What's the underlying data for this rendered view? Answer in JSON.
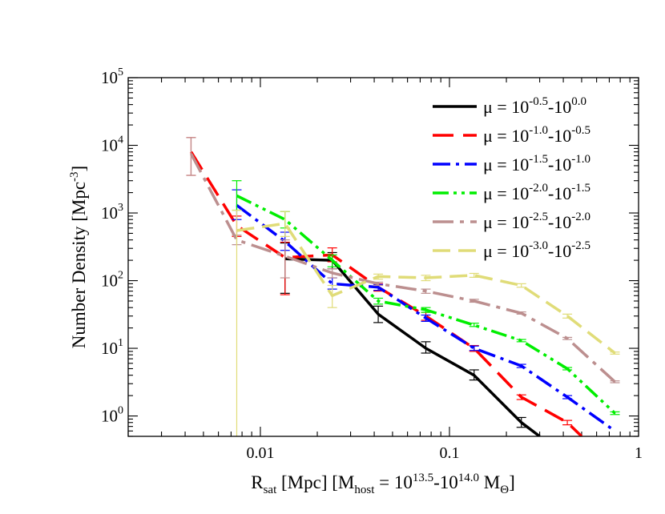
{
  "chart_data": {
    "type": "line",
    "x_scale": "log",
    "y_scale": "log",
    "xlim": [
      0.002,
      1
    ],
    "ylim": [
      0.5,
      100000
    ],
    "xlabel": {
      "main": "R",
      "sub1": "sat",
      "mid": " [Mpc] [M",
      "sub2": "host",
      "eq": " = 10",
      "sup1": "13.5",
      "dash": "-10",
      "sup2": "14.0",
      "sp": " M",
      "sub3": "Θ",
      "end": "]"
    },
    "ylabel": {
      "main": "Number Density [Mpc",
      "sup": "-3",
      "end": "]"
    },
    "x_ticks": [
      {
        "value": 0.01,
        "label": "0.01"
      },
      {
        "value": 0.1,
        "label": "0.1"
      },
      {
        "value": 1,
        "label": "1"
      }
    ],
    "y_ticks": [
      {
        "value": 1,
        "base": "10",
        "exp": "0"
      },
      {
        "value": 10,
        "base": "10",
        "exp": "1"
      },
      {
        "value": 100,
        "base": "10",
        "exp": "2"
      },
      {
        "value": 1000,
        "base": "10",
        "exp": "3"
      },
      {
        "value": 10000,
        "base": "10",
        "exp": "4"
      },
      {
        "value": 100000,
        "base": "10",
        "exp": "5"
      }
    ],
    "legend_position": "top-right",
    "series": [
      {
        "name_prefix": "μ = 10",
        "name_exp1": "-0.5",
        "name_mid": "-10",
        "name_exp2": "0.0",
        "color": "#000000",
        "dash": "",
        "width": 3.5,
        "x": [
          0.0135,
          0.024,
          0.042,
          0.075,
          0.135,
          0.24,
          0.3
        ],
        "y": [
          210,
          200,
          32,
          10,
          4,
          0.8,
          0.5
        ],
        "err_x": [
          0.0135,
          0.024,
          0.042,
          0.075,
          0.135,
          0.24
        ],
        "err_lo": [
          65,
          150,
          24,
          8.5,
          3.4,
          0.68
        ],
        "err_hi": [
          360,
          260,
          42,
          12.5,
          4.8,
          0.95
        ]
      },
      {
        "name_prefix": "μ = 10",
        "name_exp1": "-1.0",
        "name_mid": "-10",
        "name_exp2": "-0.5",
        "color": "#ff0000",
        "dash": "26,12",
        "width": 3.5,
        "x": [
          0.0043,
          0.0075,
          0.0135,
          0.024,
          0.042,
          0.075,
          0.135,
          0.24,
          0.42,
          0.5
        ],
        "y": [
          8000,
          650,
          220,
          240,
          80,
          30,
          10,
          1.9,
          0.8,
          0.5
        ],
        "err_x": [
          0.0043,
          0.0075,
          0.0135,
          0.024,
          0.042,
          0.075,
          0.135,
          0.24,
          0.42
        ],
        "err_lo": [
          3600,
          450,
          62,
          190,
          70,
          26,
          9,
          1.75,
          0.74
        ],
        "err_hi": [
          13000,
          900,
          370,
          305,
          90,
          34,
          11,
          2.05,
          0.86
        ]
      },
      {
        "name_prefix": "μ = 10",
        "name_exp1": "-1.5",
        "name_mid": "-10",
        "name_exp2": "-1.0",
        "color": "#0000ff",
        "dash": "22,7,4,7",
        "width": 3.5,
        "x": [
          0.0075,
          0.0135,
          0.024,
          0.042,
          0.075,
          0.135,
          0.24,
          0.42,
          0.75
        ],
        "y": [
          1300,
          380,
          90,
          80,
          28,
          10,
          5.5,
          1.9,
          0.6
        ],
        "err_x": [
          0.0075,
          0.0135,
          0.024,
          0.042,
          0.075,
          0.135,
          0.24,
          0.42
        ],
        "err_lo": [
          800,
          280,
          75,
          72,
          25,
          9.3,
          5.2,
          1.8
        ],
        "err_hi": [
          2200,
          520,
          110,
          88,
          31,
          10.8,
          5.8,
          2.0
        ]
      },
      {
        "name_prefix": "μ = 10",
        "name_exp1": "-2.0",
        "name_mid": "-10",
        "name_exp2": "-1.5",
        "color": "#00ee00",
        "dash": "20,6,4,6,4,6",
        "width": 3.5,
        "x": [
          0.0075,
          0.0135,
          0.024,
          0.042,
          0.075,
          0.135,
          0.24,
          0.42,
          0.75
        ],
        "y": [
          1800,
          800,
          200,
          50,
          37,
          22,
          13,
          5,
          1.1
        ],
        "err_x": [
          0.0075,
          0.0135,
          0.024,
          0.042,
          0.075,
          0.135,
          0.24,
          0.42,
          0.75
        ],
        "err_lo": [
          1100,
          600,
          160,
          45,
          34,
          21,
          12.5,
          4.8,
          1.05
        ],
        "err_hi": [
          3000,
          1050,
          240,
          55,
          40,
          23.5,
          13.5,
          5.2,
          1.15
        ]
      },
      {
        "name_prefix": "μ = 10",
        "name_exp1": "-2.5",
        "name_mid": "-10",
        "name_exp2": "-2.0",
        "color": "#bc8f8f",
        "dash": "26,8,5,8",
        "width": 3.5,
        "x": [
          0.0043,
          0.0075,
          0.0135,
          0.024,
          0.042,
          0.075,
          0.135,
          0.24,
          0.42,
          0.75
        ],
        "y": [
          7500,
          400,
          230,
          130,
          90,
          70,
          50,
          33,
          14,
          3.2
        ],
        "err_x": [
          0.0043,
          0.0075,
          0.0135,
          0.024,
          0.042,
          0.075,
          0.135,
          0.24,
          0.42,
          0.75
        ],
        "err_lo": [
          3600,
          340,
          110,
          110,
          85,
          65,
          48,
          32,
          13.5,
          3.1
        ],
        "err_hi": [
          13000,
          470,
          400,
          150,
          95,
          75,
          53,
          34.5,
          14.5,
          3.3
        ]
      },
      {
        "name_prefix": "μ = 10",
        "name_exp1": "-3.0",
        "name_mid": "-10",
        "name_exp2": "-2.5",
        "color": "#e0dc78",
        "dash": "22,10",
        "width": 3.5,
        "x": [
          0.0075,
          0.0135,
          0.024,
          0.042,
          0.075,
          0.135,
          0.24,
          0.42,
          0.75
        ],
        "y": [
          550,
          700,
          60,
          115,
          110,
          120,
          85,
          30,
          8.5
        ],
        "err_x": [
          0.0075,
          0.0135,
          0.024,
          0.042,
          0.075,
          0.135,
          0.24,
          0.42,
          0.75
        ],
        "err_lo": [
          0.3,
          450,
          40,
          105,
          100,
          112,
          80,
          28,
          8.2
        ],
        "err_hi": [
          1100,
          1050,
          85,
          125,
          120,
          128,
          90,
          32,
          8.8
        ]
      }
    ]
  }
}
